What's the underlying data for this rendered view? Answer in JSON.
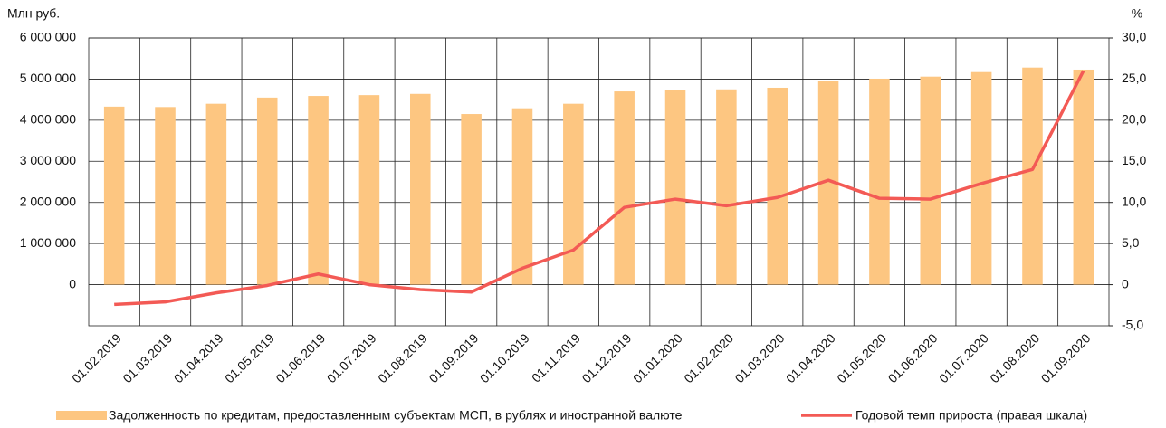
{
  "chart_data": {
    "type": "bar_line",
    "y_label": "Млн руб.",
    "y2_label": "%",
    "categories": [
      "01.02.2019",
      "01.03.2019",
      "01.04.2019",
      "01.05.2019",
      "01.06.2019",
      "01.07.2019",
      "01.08.2019",
      "01.09.2019",
      "01.10.2019",
      "01.11.2019",
      "01.12.2019",
      "01.01.2020",
      "01.02.2020",
      "01.03.2020",
      "01.04.2020",
      "01.05.2020",
      "01.06.2020",
      "01.07.2020",
      "01.08.2020",
      "01.09.2020"
    ],
    "series": [
      {
        "name": "Задолженность по кредитам, предоставленным субъектам МСП, в рублях и иностранной валюте",
        "type": "bar",
        "color": "#fdc681",
        "values": [
          4330000,
          4320000,
          4400000,
          4550000,
          4590000,
          4610000,
          4640000,
          4150000,
          4290000,
          4400000,
          4700000,
          4730000,
          4750000,
          4790000,
          4950000,
          5010000,
          5060000,
          5170000,
          5280000,
          5230000
        ]
      },
      {
        "name": "Годовой темп прироста (правая шкала)",
        "type": "line",
        "axis": "y2",
        "color": "#f35a55",
        "values": [
          -2.4,
          -2.1,
          -1.0,
          -0.1,
          1.3,
          0,
          -0.6,
          -0.9,
          2.0,
          4.2,
          9.4,
          10.4,
          9.6,
          10.6,
          12.7,
          10.5,
          10.4,
          12.3,
          14.0,
          26.0
        ]
      }
    ],
    "ylim": [
      -1000000,
      6000000
    ],
    "yticks": [
      0,
      {
        "value": 1000000,
        "label": "1 000 000"
      },
      {
        "value": 2000000,
        "label": "2 000 000"
      },
      {
        "value": 3000000,
        "label": "3 000 000"
      },
      {
        "value": 4000000,
        "label": "4 000 000"
      },
      {
        "value": 5000000,
        "label": "5 000 000"
      },
      {
        "value": 6000000,
        "label": "6 000 000"
      }
    ],
    "y2lim": [
      -5,
      30
    ],
    "y2ticks": [
      {
        "value": -5,
        "label": "-5,0"
      },
      0,
      {
        "value": 5,
        "label": "5,0"
      },
      {
        "value": 10,
        "label": "10,0"
      },
      {
        "value": 15,
        "label": "15,0"
      },
      {
        "value": 20,
        "label": "20,0"
      },
      {
        "value": 25,
        "label": "25,0"
      },
      {
        "value": 30,
        "label": "30,0"
      }
    ],
    "grid": true
  }
}
